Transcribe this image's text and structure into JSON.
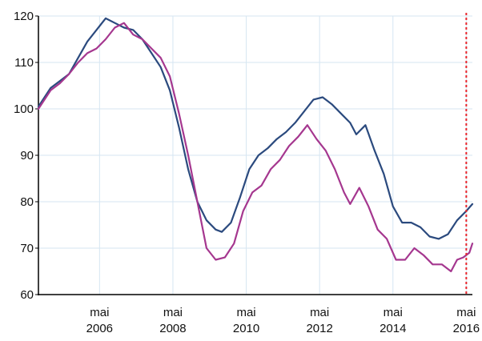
{
  "chart_data": {
    "type": "line",
    "title": "",
    "xlabel": "",
    "ylabel": "",
    "xlim": [
      "2004-09",
      "2016-07"
    ],
    "ylim": [
      60,
      120
    ],
    "grid": true,
    "yticks": [
      60,
      70,
      80,
      90,
      100,
      110,
      120
    ],
    "xticks": [
      {
        "x": "2006-05",
        "month": "mai",
        "year": "2006"
      },
      {
        "x": "2008-05",
        "month": "mai",
        "year": "2008"
      },
      {
        "x": "2010-05",
        "month": "mai",
        "year": "2010"
      },
      {
        "x": "2012-05",
        "month": "mai",
        "year": "2012"
      },
      {
        "x": "2014-05",
        "month": "mai",
        "year": "2014"
      },
      {
        "x": "2016-05",
        "month": "mai",
        "year": "2016"
      }
    ],
    "reference_line": {
      "x": "2016-05",
      "color": "#e8262c",
      "style": "dotted"
    },
    "series": [
      {
        "color": "#2b4a7e",
        "points": [
          [
            "2004-09",
            100.5
          ],
          [
            "2004-11",
            102.5
          ],
          [
            "2005-01",
            104.5
          ],
          [
            "2005-04",
            106
          ],
          [
            "2005-07",
            107.5
          ],
          [
            "2005-10",
            111
          ],
          [
            "2006-01",
            114.5
          ],
          [
            "2006-04",
            117
          ],
          [
            "2006-07",
            119.5
          ],
          [
            "2006-10",
            118.5
          ],
          [
            "2007-01",
            117.5
          ],
          [
            "2007-04",
            117
          ],
          [
            "2007-07",
            115
          ],
          [
            "2007-10",
            112
          ],
          [
            "2008-01",
            109
          ],
          [
            "2008-04",
            104
          ],
          [
            "2008-07",
            96
          ],
          [
            "2008-10",
            87
          ],
          [
            "2009-01",
            80
          ],
          [
            "2009-04",
            76
          ],
          [
            "2009-07",
            74
          ],
          [
            "2009-09",
            73.5
          ],
          [
            "2009-12",
            75.5
          ],
          [
            "2010-03",
            81
          ],
          [
            "2010-06",
            87
          ],
          [
            "2010-09",
            90
          ],
          [
            "2010-12",
            91.5
          ],
          [
            "2011-03",
            93.5
          ],
          [
            "2011-06",
            95
          ],
          [
            "2011-09",
            97
          ],
          [
            "2011-12",
            99.5
          ],
          [
            "2012-03",
            102
          ],
          [
            "2012-06",
            102.5
          ],
          [
            "2012-09",
            101
          ],
          [
            "2012-12",
            99
          ],
          [
            "2013-03",
            97
          ],
          [
            "2013-05",
            94.5
          ],
          [
            "2013-08",
            96.5
          ],
          [
            "2013-11",
            91
          ],
          [
            "2014-02",
            86
          ],
          [
            "2014-05",
            79
          ],
          [
            "2014-08",
            75.5
          ],
          [
            "2014-11",
            75.5
          ],
          [
            "2015-02",
            74.5
          ],
          [
            "2015-05",
            72.5
          ],
          [
            "2015-08",
            72
          ],
          [
            "2015-11",
            73
          ],
          [
            "2016-02",
            76
          ],
          [
            "2016-05",
            78
          ],
          [
            "2016-07",
            79.5
          ]
        ]
      },
      {
        "color": "#a5378f",
        "points": [
          [
            "2004-09",
            100
          ],
          [
            "2004-11",
            102
          ],
          [
            "2005-01",
            104
          ],
          [
            "2005-04",
            105.5
          ],
          [
            "2005-07",
            107.5
          ],
          [
            "2005-10",
            110
          ],
          [
            "2006-01",
            112
          ],
          [
            "2006-04",
            113
          ],
          [
            "2006-07",
            115
          ],
          [
            "2006-10",
            117.5
          ],
          [
            "2007-01",
            118.5
          ],
          [
            "2007-04",
            116
          ],
          [
            "2007-07",
            115
          ],
          [
            "2007-10",
            113
          ],
          [
            "2008-01",
            111
          ],
          [
            "2008-04",
            107
          ],
          [
            "2008-07",
            99
          ],
          [
            "2008-10",
            90
          ],
          [
            "2009-01",
            80
          ],
          [
            "2009-04",
            70
          ],
          [
            "2009-07",
            67.5
          ],
          [
            "2009-10",
            68
          ],
          [
            "2010-01",
            71
          ],
          [
            "2010-04",
            78
          ],
          [
            "2010-07",
            82
          ],
          [
            "2010-10",
            83.5
          ],
          [
            "2011-01",
            87
          ],
          [
            "2011-04",
            89
          ],
          [
            "2011-07",
            92
          ],
          [
            "2011-10",
            94
          ],
          [
            "2012-01",
            96.5
          ],
          [
            "2012-04",
            93.5
          ],
          [
            "2012-07",
            91
          ],
          [
            "2012-10",
            87
          ],
          [
            "2013-01",
            82
          ],
          [
            "2013-03",
            79.5
          ],
          [
            "2013-06",
            83
          ],
          [
            "2013-09",
            79
          ],
          [
            "2013-12",
            74
          ],
          [
            "2014-03",
            72
          ],
          [
            "2014-06",
            67.5
          ],
          [
            "2014-09",
            67.5
          ],
          [
            "2014-12",
            70
          ],
          [
            "2015-03",
            68.5
          ],
          [
            "2015-06",
            66.5
          ],
          [
            "2015-09",
            66.5
          ],
          [
            "2015-12",
            65
          ],
          [
            "2016-02",
            67.5
          ],
          [
            "2016-04",
            68
          ],
          [
            "2016-06",
            69
          ],
          [
            "2016-07",
            71
          ]
        ]
      }
    ]
  }
}
